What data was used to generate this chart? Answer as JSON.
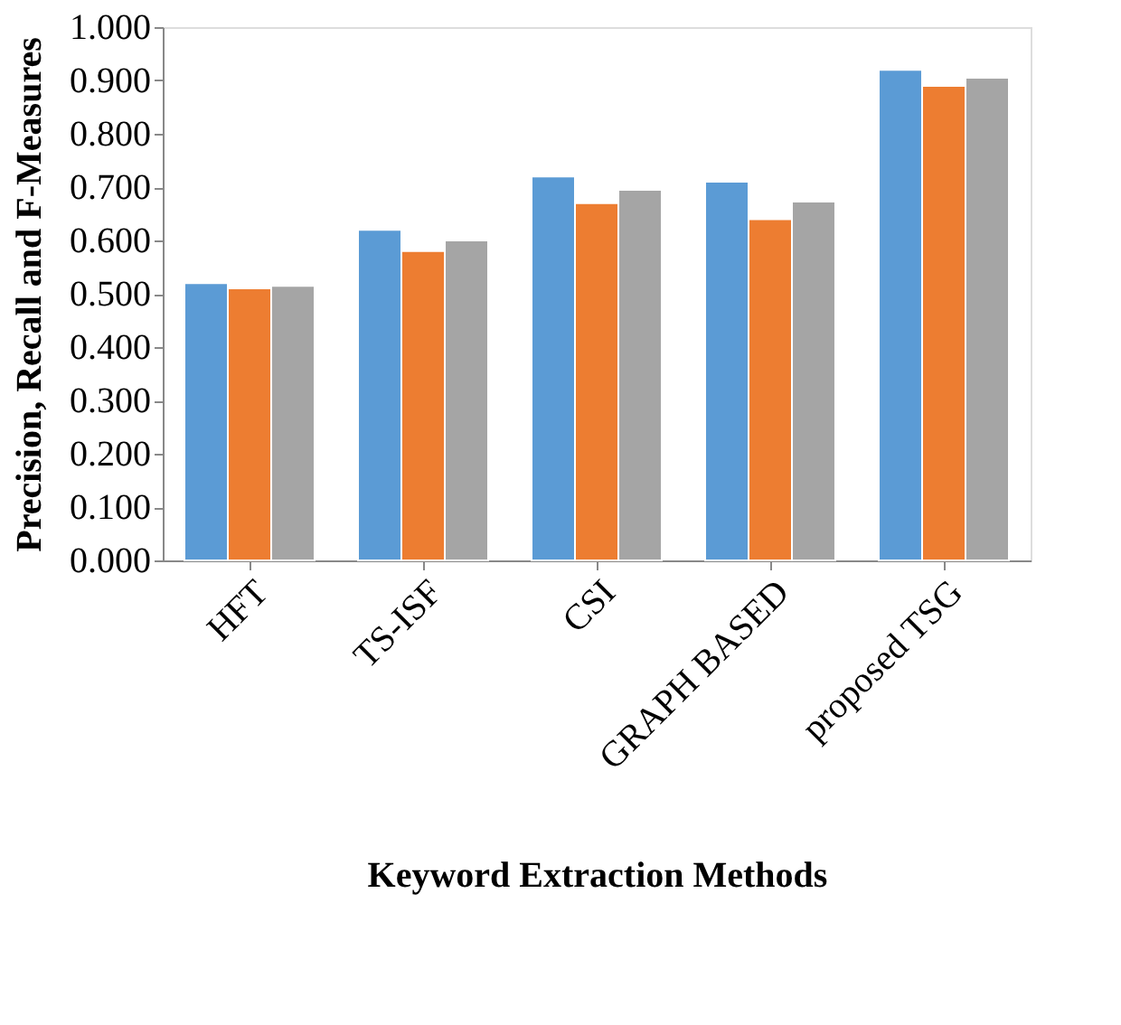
{
  "chart_data": {
    "type": "bar",
    "xlabel": "Keyword Extraction Methods",
    "ylabel": "Precision, Recall and F-Measures",
    "categories": [
      "HFT",
      "TS-ISF",
      "CSI",
      "GRAPH BASED",
      "proposed TSG"
    ],
    "series": [
      {
        "color": "#5b9bd5",
        "values": [
          0.52,
          0.62,
          0.72,
          0.71,
          0.92
        ]
      },
      {
        "color": "#ed7d31",
        "values": [
          0.51,
          0.58,
          0.67,
          0.64,
          0.89
        ]
      },
      {
        "color": "#a5a5a5",
        "values": [
          0.515,
          0.6,
          0.695,
          0.673,
          0.905
        ]
      }
    ],
    "ylim": [
      0,
      1
    ],
    "yticks": [
      {
        "value": 0,
        "label": "0.000"
      },
      {
        "value": 0.1,
        "label": "0.100"
      },
      {
        "value": 0.2,
        "label": "0.200"
      },
      {
        "value": 0.3,
        "label": "0.300"
      },
      {
        "value": 0.4,
        "label": "0.400"
      },
      {
        "value": 0.5,
        "label": "0.500"
      },
      {
        "value": 0.6,
        "label": "0.600"
      },
      {
        "value": 0.7,
        "label": "0.700"
      },
      {
        "value": 0.8,
        "label": "0.800"
      },
      {
        "value": 0.9,
        "label": "0.900"
      },
      {
        "value": 1,
        "label": "1.000"
      }
    ],
    "grid": false,
    "legend": false
  }
}
